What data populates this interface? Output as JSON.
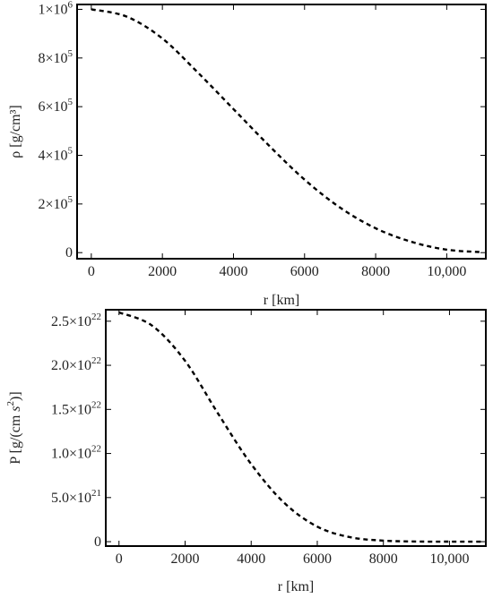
{
  "chart_data": [
    {
      "type": "line",
      "xlabel": "r [km]",
      "ylabel": "ρ [g/cm³]",
      "xlim": [
        -400,
        11100
      ],
      "ylim": [
        -25000,
        1020000
      ],
      "xticks": [
        0,
        2000,
        4000,
        6000,
        8000,
        10000
      ],
      "xtick_labels": [
        "0",
        "2000",
        "4000",
        "6000",
        "8000",
        "10,000"
      ],
      "yticks": [
        0,
        200000,
        400000,
        600000,
        800000,
        1000000
      ],
      "ytick_labels": [
        {
          "mant": "0",
          "exp": ""
        },
        {
          "mant": "2×10",
          "exp": "5"
        },
        {
          "mant": "4×10",
          "exp": "5"
        },
        {
          "mant": "6×10",
          "exp": "5"
        },
        {
          "mant": "8×10",
          "exp": "5"
        },
        {
          "mant": "1×10",
          "exp": "6"
        }
      ],
      "series": [
        {
          "style": "dashed",
          "x": [
            0,
            1000,
            2000,
            3000,
            4000,
            5000,
            6000,
            7000,
            8000,
            9000,
            10000,
            11000
          ],
          "y": [
            1000000,
            970000,
            880000,
            740000,
            590000,
            440000,
            300000,
            185000,
            100000,
            45000,
            12000,
            2000
          ]
        }
      ]
    },
    {
      "type": "line",
      "xlabel": "r [km]",
      "ylabel_parts": {
        "pre": "P [g/(cm ",
        "var": "s",
        "sup": "2",
        "post": ")]"
      },
      "xlim": [
        -400,
        11100
      ],
      "ylim": [
        -5e+20,
        2.63e+22
      ],
      "xticks": [
        0,
        2000,
        4000,
        6000,
        8000,
        10000
      ],
      "xtick_labels": [
        "0",
        "2000",
        "4000",
        "6000",
        "8000",
        "10,000"
      ],
      "yticks": [
        0,
        5e+21,
        1e+22,
        1.5e+22,
        2e+22,
        2.5e+22
      ],
      "ytick_labels": [
        {
          "mant": "0",
          "exp": ""
        },
        {
          "mant": "5.0×10",
          "exp": "21"
        },
        {
          "mant": "1.0×10",
          "exp": "22"
        },
        {
          "mant": "1.5×10",
          "exp": "22"
        },
        {
          "mant": "2.0×10",
          "exp": "22"
        },
        {
          "mant": "2.5×10",
          "exp": "22"
        }
      ],
      "series": [
        {
          "style": "dashed",
          "x": [
            0,
            1000,
            2000,
            3000,
            4000,
            5000,
            6000,
            7000,
            8000,
            9000,
            10000,
            11000
          ],
          "y": [
            2.6e+22,
            2.45e+22,
            2.05e+22,
            1.45e+22,
            8.8e+21,
            4.4e+21,
            1.7e+21,
            5e+20,
            1.2e+20,
            2e+19,
            3e+18,
            0
          ]
        }
      ]
    }
  ]
}
